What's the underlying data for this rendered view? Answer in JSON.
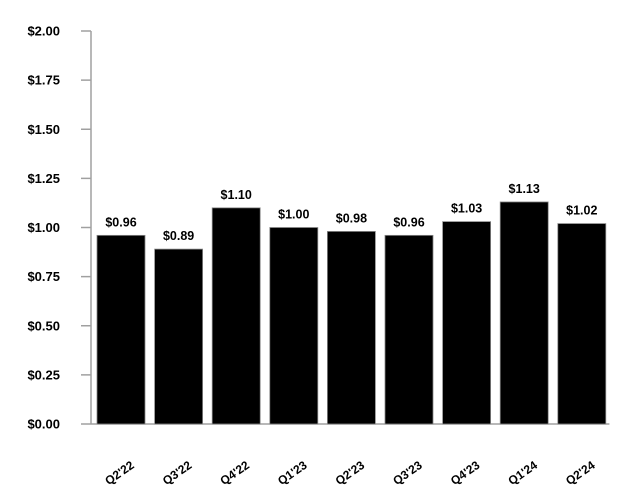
{
  "chart_data": {
    "type": "bar",
    "categories": [
      "Q2'22",
      "Q3'22",
      "Q4'22",
      "Q1'23",
      "Q2'23",
      "Q3'23",
      "Q4'23",
      "Q1'24",
      "Q2'24"
    ],
    "values": [
      0.96,
      0.89,
      1.1,
      1.0,
      0.98,
      0.96,
      1.03,
      1.13,
      1.02
    ],
    "data_labels": [
      "$0.96",
      "$0.89",
      "$1.10",
      "$1.00",
      "$0.98",
      "$0.96",
      "$1.03",
      "$1.13",
      "$1.02"
    ],
    "yticks": [
      0,
      0.25,
      0.5,
      0.75,
      1.0,
      1.25,
      1.5,
      1.75,
      2.0
    ],
    "ytick_labels": [
      "$0.00",
      "$0.25",
      "$0.50",
      "$0.75",
      "$1.00",
      "$1.25",
      "$1.50",
      "$1.75",
      "$2.00"
    ],
    "ylim": [
      0,
      2.0
    ],
    "title": "",
    "xlabel": "",
    "ylabel": "",
    "grid": false,
    "legend": "none",
    "colors": {
      "bar": "#000000",
      "axis": "#a0a0a0"
    }
  }
}
